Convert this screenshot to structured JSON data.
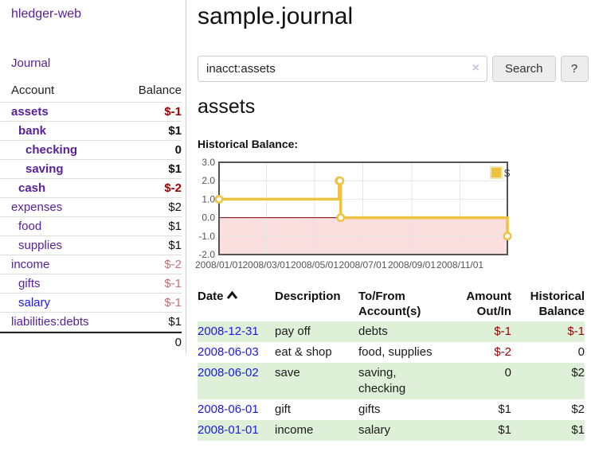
{
  "app": {
    "title": "hledger-web"
  },
  "colors": {
    "brand_purple": "#5a2099",
    "link_blue": "#1b1be0",
    "negative_strong": "#990000",
    "negative_soft": "#c07272",
    "row_shaded_green": "#dff0d8",
    "chart_series_gold": "#edc240",
    "chart_negative_fill": "#fbdede",
    "chart_zero_line": "#8b0000"
  },
  "sidebar": {
    "journal_link": "Journal",
    "accounts_header": {
      "account": "Account",
      "balance": "Balance"
    },
    "accounts": [
      {
        "name": "assets",
        "depth": 1,
        "bold": true,
        "balance": "$-1",
        "balance_style": "neg-strong",
        "link_color": "purple"
      },
      {
        "name": "bank",
        "depth": 2,
        "bold": true,
        "balance": "$1",
        "balance_style": "pos",
        "link_color": "purple"
      },
      {
        "name": "checking",
        "depth": 3,
        "bold": true,
        "balance": "0",
        "balance_style": "pos",
        "link_color": "purple"
      },
      {
        "name": "saving",
        "depth": 3,
        "bold": true,
        "balance": "$1",
        "balance_style": "pos",
        "link_color": "purple"
      },
      {
        "name": "cash",
        "depth": 2,
        "bold": true,
        "balance": "$-2",
        "balance_style": "neg-strong",
        "link_color": "purple"
      },
      {
        "name": "expenses",
        "depth": 1,
        "bold": false,
        "balance": "$2",
        "balance_style": "pos",
        "link_color": "purple"
      },
      {
        "name": "food",
        "depth": 2,
        "bold": false,
        "balance": "$1",
        "balance_style": "pos",
        "link_color": "purple"
      },
      {
        "name": "supplies",
        "depth": 2,
        "bold": false,
        "balance": "$1",
        "balance_style": "pos",
        "link_color": "purple"
      },
      {
        "name": "income",
        "depth": 1,
        "bold": false,
        "balance": "$-2",
        "balance_style": "neg-soft",
        "link_color": "purple"
      },
      {
        "name": "gifts",
        "depth": 2,
        "bold": false,
        "balance": "$-1",
        "balance_style": "neg-soft",
        "link_color": "purple"
      },
      {
        "name": "salary",
        "depth": 2,
        "bold": false,
        "balance": "$-1",
        "balance_style": "neg-soft",
        "link_color": "blue"
      },
      {
        "name": "liabilities:debts",
        "depth": 1,
        "bold": false,
        "balance": "$1",
        "balance_style": "pos",
        "link_color": "purple"
      }
    ],
    "total": "0"
  },
  "header": {
    "title": "sample.journal"
  },
  "search": {
    "value": "inacct:assets",
    "clear_icon": "×",
    "button_label": "Search",
    "help_label": "?"
  },
  "account_page": {
    "title": "assets",
    "chart_label": "Historical Balance:"
  },
  "chart_data": {
    "type": "line",
    "title": "Historical Balance",
    "step": true,
    "ylim": [
      -2,
      3
    ],
    "xlim_days": [
      0,
      365
    ],
    "grid_on": true,
    "grid_color": "#e6e6e6",
    "border_color": "#545454",
    "zero_line_color": "#8b0000",
    "negative_fill": "#fbdede",
    "legend_position": "top-right",
    "y_ticks": [
      {
        "label": "3.0",
        "value": 3
      },
      {
        "label": "2.0",
        "value": 2
      },
      {
        "label": "1.0",
        "value": 1
      },
      {
        "label": "0.0",
        "value": 0
      },
      {
        "label": "-1.0",
        "value": -1
      },
      {
        "label": "-2.0",
        "value": -2
      }
    ],
    "x_ticks": [
      {
        "label": "2008/01/01",
        "day": 0
      },
      {
        "label": "2008/03/01",
        "day": 60
      },
      {
        "label": "2008/05/01",
        "day": 121
      },
      {
        "label": "2008/07/01",
        "day": 182
      },
      {
        "label": "2008/09/01",
        "day": 244
      },
      {
        "label": "2008/11/01",
        "day": 305
      }
    ],
    "series": [
      {
        "name": "$",
        "color": "#edc240",
        "points": [
          {
            "date": "2008/01/01",
            "day": 0,
            "value": 1
          },
          {
            "date": "2008/06/01",
            "day": 152,
            "value": 2
          },
          {
            "date": "2008/06/02",
            "day": 153,
            "value": 2
          },
          {
            "date": "2008/06/03",
            "day": 154,
            "value": 0
          },
          {
            "date": "2008/12/31",
            "day": 365,
            "value": -1
          }
        ]
      }
    ]
  },
  "register": {
    "sorted_by": "date-ascending",
    "headers": {
      "date": "Date",
      "description": "Description",
      "account_line1": "To/From",
      "account_line2": "Account(s)",
      "amount_line1": "Amount",
      "amount_line2": "Out/In",
      "balance_line1": "Historical",
      "balance_line2": "Balance"
    },
    "rows": [
      {
        "date": "2008-12-31",
        "description": "pay off",
        "accounts": "debts",
        "amount": "$-1",
        "amount_neg": true,
        "balance": "$-1",
        "balance_neg": true
      },
      {
        "date": "2008-06-03",
        "description": "eat & shop",
        "accounts": "food, supplies",
        "amount": "$-2",
        "amount_neg": true,
        "balance": "0",
        "balance_neg": false
      },
      {
        "date": "2008-06-02",
        "description": "save",
        "accounts": "saving,\nchecking",
        "amount": "0",
        "amount_neg": false,
        "balance": "$2",
        "balance_neg": false
      },
      {
        "date": "2008-06-01",
        "description": "gift",
        "accounts": "gifts",
        "amount": "$1",
        "amount_neg": false,
        "balance": "$2",
        "balance_neg": false
      },
      {
        "date": "2008-01-01",
        "description": "income",
        "accounts": "salary",
        "amount": "$1",
        "amount_neg": false,
        "balance": "$1",
        "balance_neg": false
      }
    ]
  }
}
